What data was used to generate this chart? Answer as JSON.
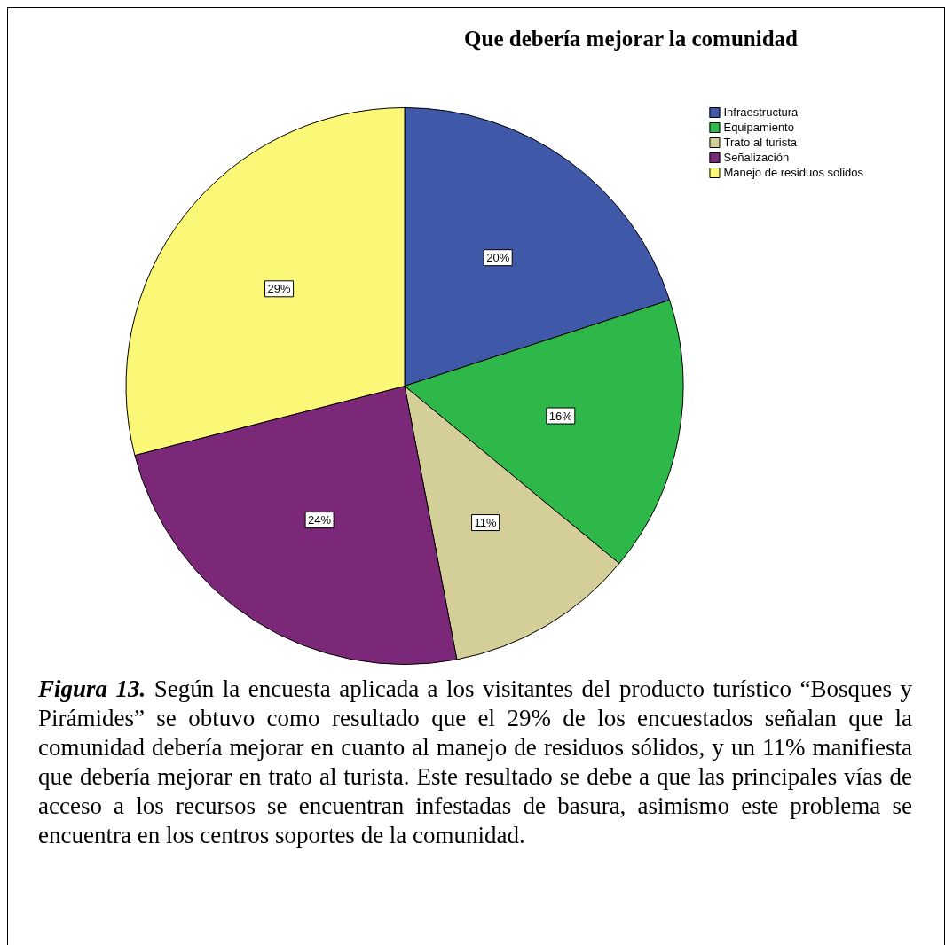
{
  "chart_data": {
    "type": "pie",
    "title": "Que debería mejorar la comunidad",
    "categories": [
      "Infraestructura",
      "Equipamiento",
      "Trato al turista",
      "Señalización",
      "Manejo de residuos solidos"
    ],
    "values": [
      20,
      16,
      11,
      24,
      29
    ],
    "value_labels": [
      "20%",
      "16%",
      "11%",
      "24%",
      "29%"
    ],
    "colors": [
      "#3f58a8",
      "#2fb84a",
      "#d4cf98",
      "#7b2878",
      "#fbf877"
    ],
    "legend": "top right",
    "annotations": [
      "Figura 13.",
      "Según la encuesta aplicada a los visitantes del producto turístico “Bosques y Pirámides” se obtuvo como resultado que el 29% de los encuestados señalan que la comunidad debería mejorar en cuanto al manejo de residuos sólidos, y un 11% manifiesta que debería mejorar en trato al turista. Este resultado se debe a que las principales vías de acceso a los recursos se encuentran infestadas de basura, asimismo este problema se encuentra en los centros soportes de la comunidad."
    ]
  }
}
